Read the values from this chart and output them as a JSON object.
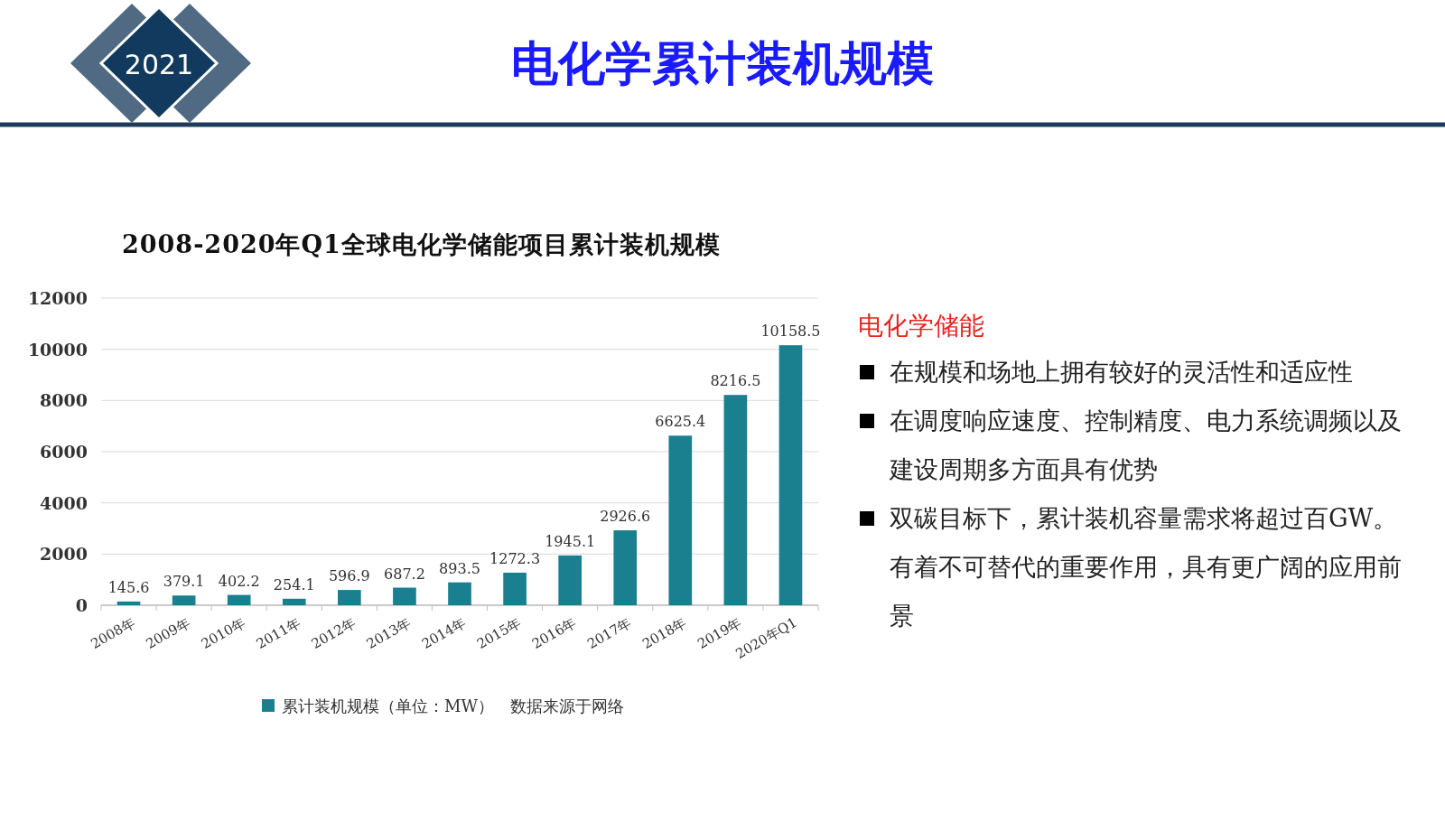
{
  "chart_data": [
    {
      "type": "bar",
      "title": "2008-2020年Q1全球电化学储能项目累计装机规模",
      "categories": [
        "2008年",
        "2009年",
        "2010年",
        "2011年",
        "2012年",
        "2013年",
        "2014年",
        "2015年",
        "2016年",
        "2017年",
        "2018年",
        "2019年",
        "2020年Q1"
      ],
      "series": [
        {
          "name": "累计装机规模（单位：MW）",
          "color": "#1a7f8e",
          "values": [
            145.6,
            379.1,
            402.2,
            254.1,
            596.9,
            687.2,
            893.5,
            1272.3,
            1945.1,
            2926.6,
            6625.4,
            8216.5,
            10158.5
          ]
        }
      ],
      "ylim": [
        0,
        12000
      ],
      "yticks": [
        0,
        2000,
        4000,
        6000,
        8000,
        10000,
        12000
      ],
      "grid": "y",
      "legend": "bottom",
      "data_labels": true,
      "annotations": [
        "数据来源于网络"
      ]
    },
    {
      "type": "other",
      "title": "电化学累计装机规模",
      "subtitle": "电化学储能",
      "annotations": [
        "2021",
        "在规模和场地上拥有较好的灵活性和适应性",
        "在调度响应速度、控制精度、电力系统调频以及建设周期多方面具有优势",
        "双碳目标下，累计装机容量需求将超过百GW。有着不可替代的重要作用，具有更广阔的应用前景"
      ]
    }
  ]
}
